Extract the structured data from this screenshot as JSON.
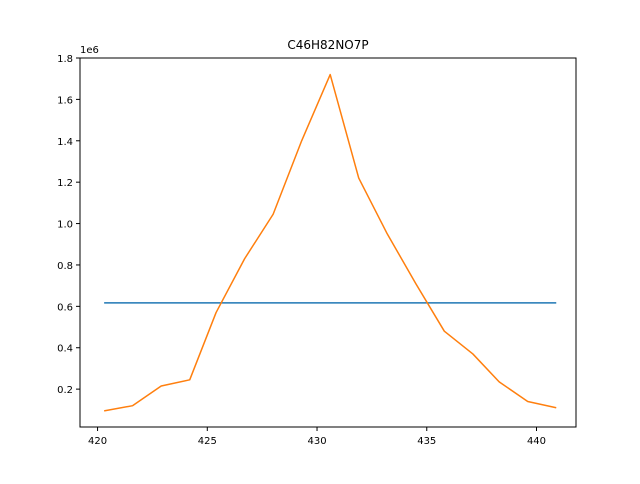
{
  "chart_data": {
    "type": "line",
    "title": "C46H82NO7P",
    "xlabel": "",
    "ylabel": "",
    "y_offset_label": "1e6",
    "xlim": [
      419.2,
      441.8
    ],
    "ylim": [
      0.017,
      1.8
    ],
    "x_ticks": [
      420,
      425,
      430,
      435,
      440
    ],
    "x_tick_labels": [
      "420",
      "425",
      "430",
      "435",
      "440"
    ],
    "y_ticks": [
      0.2,
      0.4,
      0.6,
      0.8,
      1.0,
      1.2,
      1.4,
      1.6,
      1.8
    ],
    "y_tick_labels": [
      "0.2",
      "0.4",
      "0.6",
      "0.8",
      "1.0",
      "1.2",
      "1.4",
      "1.6",
      "1.8"
    ],
    "grid": false,
    "legend": "none",
    "series": [
      {
        "color": "#1f77b4",
        "x": [
          420.3,
          440.9
        ],
        "y": [
          0.617,
          0.617
        ]
      },
      {
        "color": "#ff7f0e",
        "x": [
          420.3,
          421.6,
          422.9,
          424.2,
          425.4,
          426.7,
          428.0,
          429.3,
          430.6,
          431.9,
          433.2,
          434.5,
          435.8,
          437.1,
          438.3,
          439.6,
          440.9
        ],
        "y": [
          0.095,
          0.12,
          0.215,
          0.245,
          0.57,
          0.83,
          1.045,
          1.4,
          1.72,
          1.22,
          0.95,
          0.71,
          0.48,
          0.37,
          0.235,
          0.14,
          0.11
        ]
      }
    ]
  }
}
